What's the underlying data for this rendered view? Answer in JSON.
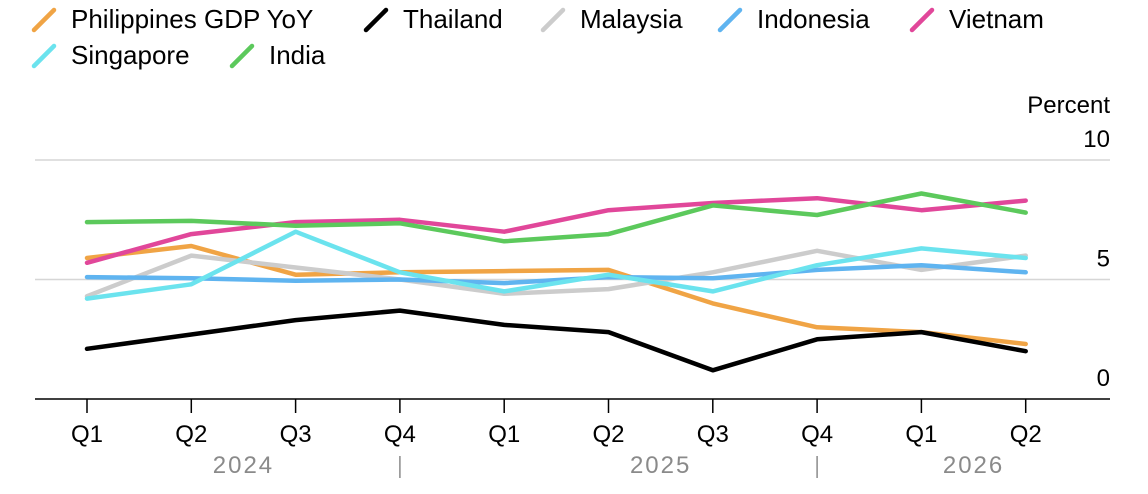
{
  "chart_data": {
    "type": "line",
    "ylabel": "Percent",
    "ylim": [
      0,
      10
    ],
    "yticks": [
      0,
      5,
      10
    ],
    "grid": "horizontal",
    "legend_position": "top-left",
    "categories": [
      "Q1",
      "Q2",
      "Q3",
      "Q4",
      "Q1",
      "Q2",
      "Q3",
      "Q4",
      "Q1",
      "Q2"
    ],
    "year_groups": [
      {
        "label": "2024",
        "start": 0,
        "end": 3
      },
      {
        "label": "2025",
        "start": 4,
        "end": 7
      },
      {
        "label": "2026",
        "start": 8,
        "end": 9
      }
    ],
    "series": [
      {
        "name": "Philippines GDP YoY",
        "color": "#f0a445",
        "values": [
          5.9,
          6.4,
          5.2,
          5.3,
          5.35,
          5.4,
          4.0,
          3.0,
          2.8,
          2.3
        ]
      },
      {
        "name": "Thailand",
        "color": "#000000",
        "values": [
          2.1,
          2.7,
          3.3,
          3.7,
          3.1,
          2.8,
          1.2,
          2.5,
          2.8,
          2.0
        ]
      },
      {
        "name": "Malaysia",
        "color": "#cccccc",
        "values": [
          4.3,
          6.0,
          5.5,
          5.0,
          4.4,
          4.6,
          5.3,
          6.2,
          5.4,
          6.0
        ]
      },
      {
        "name": "Indonesia",
        "color": "#5fb4f0",
        "values": [
          5.1,
          5.05,
          4.95,
          5.0,
          4.85,
          5.1,
          5.05,
          5.4,
          5.6,
          5.3
        ]
      },
      {
        "name": "Vietnam",
        "color": "#e1479a",
        "values": [
          5.7,
          6.9,
          7.4,
          7.5,
          7.0,
          7.9,
          8.2,
          8.4,
          7.9,
          8.3
        ]
      },
      {
        "name": "Singapore",
        "color": "#6be3ee",
        "values": [
          4.2,
          4.8,
          7.0,
          5.3,
          4.5,
          5.2,
          4.5,
          5.6,
          6.3,
          5.9
        ]
      },
      {
        "name": "India",
        "color": "#5cc95c",
        "values": [
          7.4,
          7.45,
          7.25,
          7.35,
          6.6,
          6.9,
          8.1,
          7.7,
          8.6,
          7.8
        ]
      }
    ]
  }
}
